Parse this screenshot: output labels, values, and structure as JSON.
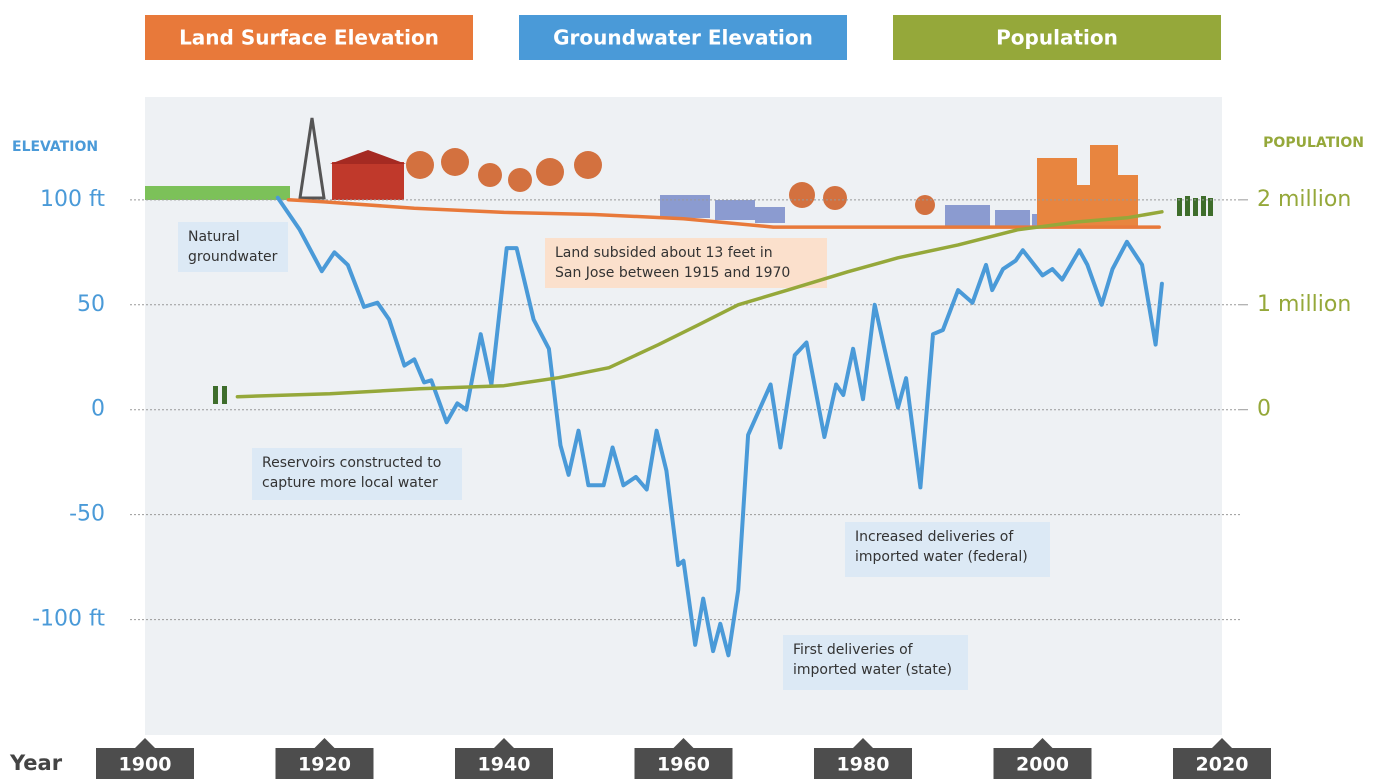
{
  "chart_data": {
    "type": "line",
    "y_label": "ELEVATION",
    "y2_label": "POPULATION",
    "x_label": "Year",
    "xlim": [
      1900,
      2020
    ],
    "xticks": [
      1900,
      1920,
      1940,
      1960,
      1980,
      2000,
      2020
    ],
    "ylim": [
      -155,
      149
    ],
    "yticks": [
      {
        "value": 100,
        "label": "100 ft"
      },
      50,
      0,
      -50,
      {
        "value": -100,
        "label": "-100 ft"
      }
    ],
    "y2lim": [
      -3100000,
      2980000
    ],
    "y2ticks": [
      {
        "value": 2000000,
        "label": "2 million"
      },
      {
        "value": 1000000,
        "label": "1 million"
      },
      0
    ],
    "grid": true,
    "series": [
      {
        "name": "Land Surface Elevation",
        "color": "#e8793a",
        "x": [
          1916,
          1920,
          1930,
          1940,
          1950,
          1960,
          1970,
          1980,
          1990,
          2000,
          2013
        ],
        "values": [
          100,
          99,
          96,
          94,
          93,
          91,
          87,
          87,
          87,
          87,
          87
        ]
      },
      {
        "name": "Groundwater Elevation",
        "color": "#4a9ad8",
        "x": [
          1914.8,
          1917.2,
          1919.7,
          1921.1,
          1922.6,
          1924.4,
          1925.9,
          1927.2,
          1928.9,
          1930,
          1931.1,
          1931.9,
          1933.6,
          1934.8,
          1935.8,
          1937.4,
          1938.6,
          1940.3,
          1941.4,
          1943.3,
          1945,
          1946.3,
          1947.2,
          1948.3,
          1949.4,
          1951.1,
          1952.1,
          1953.3,
          1954.7,
          1955.9,
          1957,
          1958.1,
          1959.4,
          1960,
          1961.3,
          1962.2,
          1963.3,
          1964.1,
          1965,
          1966.1,
          1967.2,
          1969.7,
          1970.8,
          1972.4,
          1973.7,
          1975.7,
          1977,
          1977.8,
          1978.9,
          1980,
          1981.3,
          1982.4,
          1983.9,
          1984.8,
          1986.4,
          1987.8,
          1988.9,
          1990.6,
          1992.2,
          1993.7,
          1994.4,
          1995.6,
          1997,
          1997.8,
          2000,
          2001.1,
          2002.2,
          2004.1,
          2005,
          2006.6,
          2007.8,
          2009.4,
          2011.1,
          2012.6,
          2013.3
        ],
        "values": [
          101,
          86,
          66,
          75,
          69,
          49,
          51,
          43,
          21,
          24,
          13,
          14,
          -6,
          3,
          0,
          36,
          12,
          77,
          77,
          43,
          29,
          -17,
          -31,
          -10,
          -36,
          -36,
          -18,
          -36,
          -32,
          -38,
          -10,
          -29,
          -74,
          -72,
          -112,
          -90,
          -115,
          -102,
          -117,
          -86,
          -12,
          12,
          -18,
          26,
          32,
          -13,
          12,
          7,
          29,
          5,
          50,
          29,
          1,
          15,
          -37,
          36,
          38,
          57,
          51,
          69,
          57,
          67,
          71,
          76,
          64,
          67,
          62,
          76,
          69,
          50,
          67,
          80,
          69,
          31,
          60
        ]
      },
      {
        "name": "Population",
        "color": "#95a83a",
        "axis": "y2",
        "x": [
          1910.3,
          1920.6,
          1930.6,
          1940,
          1946.1,
          1951.7,
          1957.2,
          1961.7,
          1966.1,
          1971.7,
          1978.3,
          1983.9,
          1990.6,
          1997.2,
          2003.9,
          2009.4,
          2013.3
        ],
        "values": [
          124000,
          152000,
          200000,
          229000,
          305000,
          400000,
          619000,
          810000,
          1000000,
          1143000,
          1314000,
          1448000,
          1571000,
          1714000,
          1790000,
          1829000,
          1886000
        ]
      }
    ],
    "annotations": [
      [
        "Natural",
        "groundwater"
      ],
      [
        "Land subsided about 13 feet in",
        "San Jose between 1915 and 1970"
      ],
      [
        "Reservoirs constructed to",
        "capture more local water"
      ],
      [
        "Increased deliveries of",
        "imported water (federal)"
      ],
      [
        "First deliveries of",
        "imported water (state)"
      ]
    ]
  }
}
